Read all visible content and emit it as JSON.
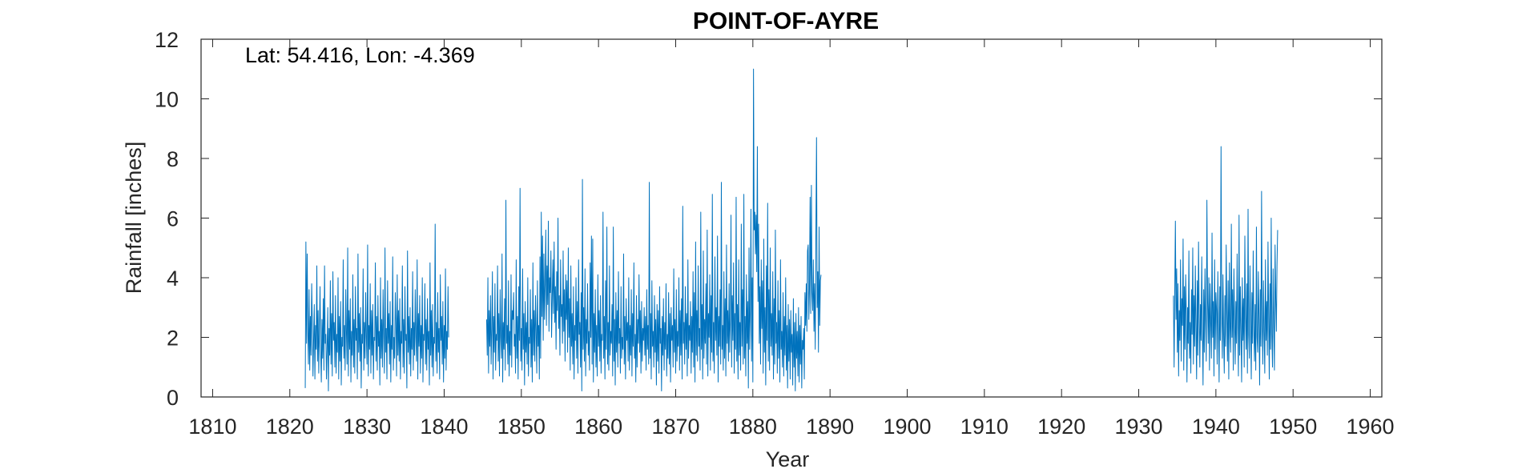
{
  "chart_data": {
    "type": "line",
    "title": "POINT-OF-AYRE",
    "xlabel": "Year",
    "ylabel": "Rainfall [inches]",
    "annotation": "Lat: 54.416, Lon: -4.369",
    "xlim": [
      1808.5,
      1961.5
    ],
    "ylim": [
      0,
      12
    ],
    "xticks": [
      1810,
      1820,
      1830,
      1840,
      1850,
      1860,
      1870,
      1880,
      1890,
      1900,
      1910,
      1920,
      1930,
      1940,
      1950,
      1960
    ],
    "yticks": [
      0,
      2,
      4,
      6,
      8,
      10,
      12
    ],
    "grid": false,
    "series_color": "#0072BD",
    "series": [
      {
        "frequency": "monthly",
        "segments": [
          {
            "start": 1822.0,
            "values": [
              0.3,
              5.2,
              1.8,
              4.8,
              2.2,
              1.1,
              3.6,
              0.9,
              2.7,
              1.4,
              3.8,
              2.5,
              0.7,
              1.9,
              3.1,
              0.6,
              2.4,
              1.6,
              4.4,
              1.2,
              2.9,
              0.8,
              2.2,
              3.7,
              1.5,
              0.5,
              2.6,
              1.3,
              3.3,
              0.9,
              4.4,
              1.8,
              2.1,
              0.6,
              1.6,
              3.0,
              0.2,
              2.3,
              1.4,
              3.9,
              1.1,
              2.8,
              0.7,
              4.2,
              1.9,
              2.5,
              1.0,
              3.4,
              0.8,
              2.1,
              1.5,
              4.0,
              0.6,
              2.7,
              1.2,
              3.2,
              0.4,
              2.0,
              1.7,
              4.6,
              1.3,
              2.4,
              0.9,
              3.6,
              2.2,
              1.1,
              5.0,
              0.7,
              2.9,
              1.6,
              3.3,
              0.5,
              2.2,
              1.4,
              4.1,
              1.0,
              2.6,
              0.8,
              3.7,
              1.9,
              2.3,
              0.6,
              4.8,
              1.5,
              2.8,
              1.2,
              3.0,
              0.3,
              2.1,
              1.8,
              4.3,
              0.9,
              2.5,
              1.3,
              3.5,
              2.0,
              1.1,
              5.1,
              0.7,
              2.4,
              1.6,
              3.8,
              0.8,
              2.9,
              1.4,
              3.1,
              0.6,
              2.0,
              1.9,
              4.5,
              1.2,
              2.7,
              0.9,
              3.4,
              1.7,
              2.2,
              0.4,
              4.0,
              1.3,
              2.6,
              1.0,
              3.6,
              2.1,
              0.8,
              5.0,
              1.5,
              2.3,
              0.6,
              3.9,
              1.8,
              2.8,
              1.1,
              3.2,
              0.5,
              2.4,
              1.6,
              4.7,
              0.9,
              2.0,
              1.3,
              3.5,
              2.5,
              0.7,
              4.1,
              1.4,
              2.9,
              1.2,
              3.3,
              0.6,
              2.2,
              1.8,
              4.4,
              1.0,
              2.6,
              0.8,
              3.7,
              1.9,
              2.1,
              0.3,
              4.9,
              1.5,
              2.7,
              1.1,
              3.0,
              0.7,
              2.3,
              1.6,
              4.2,
              0.9,
              2.5,
              1.4,
              3.6,
              2.0,
              1.2,
              4.6,
              0.6,
              2.8,
              1.7,
              3.4,
              0.8,
              2.4,
              1.3,
              4.0,
              0.5,
              2.1,
              1.9,
              3.8,
              1.1,
              2.6,
              0.9,
              3.3,
              1.6,
              2.2,
              0.4,
              4.5,
              1.4,
              2.9,
              1.0,
              3.1,
              0.7,
              2.0,
              1.8,
              5.8,
              1.2,
              2.5,
              0.8,
              3.5,
              1.5,
              2.3,
              0.6,
              4.1,
              1.9,
              2.7,
              1.1,
              3.2,
              0.5,
              2.4,
              1.3,
              4.3,
              0.9,
              2.2,
              1.6,
              3.7,
              2.0
            ]
          },
          {
            "start": 1845.5,
            "values": [
              2.6,
              1.4,
              4.0,
              0.8,
              2.9,
              1.7,
              3.4,
              1.1,
              2.3,
              4.2,
              0.6,
              2.7,
              1.5,
              3.8,
              0.9,
              2.1,
              1.9,
              4.4,
              1.2,
              2.8,
              0.7,
              3.6,
              2.0,
              1.3,
              4.8,
              0.5,
              2.5,
              1.6,
              3.3,
              0.9,
              6.6,
              1.8,
              2.4,
              1.1,
              3.9,
              0.7,
              2.2,
              1.4,
              4.1,
              1.0,
              2.9,
              2.6,
              3.5,
              1.7,
              2.1,
              0.8,
              4.6,
              1.3,
              2.7,
              0.6,
              3.7,
              1.9,
              7.0,
              1.2,
              2.3,
              0.9,
              4.3,
              1.6,
              2.8,
              0.4,
              3.2,
              1.5,
              2.5,
              1.1,
              4.0,
              0.7,
              2.0,
              1.8,
              3.6,
              1.0,
              2.6,
              0.5,
              4.5,
              1.4,
              2.9,
              1.2,
              3.4,
              2.2,
              0.8,
              3.9,
              1.7,
              2.4,
              0.6,
              4.7,
              1.3,
              6.2,
              2.7,
              5.4,
              1.9,
              4.8,
              2.6,
              3.8,
              5.6,
              2.4,
              4.4,
              3.1,
              5.9,
              2.2,
              4.0,
              3.5,
              4.9,
              2.0,
              3.3,
              4.6,
              2.8,
              5.2,
              2.5,
              3.7,
              1.6,
              4.2,
              2.9,
              6.0,
              2.3,
              3.4,
              1.4,
              4.6,
              2.7,
              3.1,
              1.8,
              4.9,
              2.2,
              3.6,
              1.2,
              4.1,
              2.6,
              3.9,
              1.5,
              5.0,
              2.0,
              3.3,
              0.9,
              4.4,
              1.7,
              2.8,
              1.1,
              3.7,
              0.6,
              2.4,
              1.9,
              4.0,
              1.3,
              3.2,
              0.8,
              4.6,
              2.1,
              2.5,
              1.0,
              3.5,
              0.2,
              7.3,
              1.6,
              3.0,
              1.2,
              4.3,
              0.7,
              2.6,
              1.8,
              3.8,
              1.4,
              2.2,
              0.9,
              4.5,
              2.0,
              5.4,
              1.1,
              5.3,
              0.5,
              2.8,
              1.5,
              3.6,
              1.0,
              2.4,
              0.7,
              4.1,
              1.7,
              2.9,
              1.2,
              3.4,
              0.8,
              2.1,
              1.9,
              6.2,
              1.3,
              2.7,
              0.6,
              3.9,
              1.6,
              5.7,
              1.1,
              2.5,
              0.9,
              4.4,
              1.4,
              2.2,
              1.8,
              3.1,
              0.7,
              5.7,
              1.2,
              2.6,
              0.4,
              3.5,
              1.5,
              2.9,
              1.0,
              4.2,
              1.8,
              2.3,
              0.8,
              3.7,
              1.3,
              2.0,
              1.6,
              4.8,
              1.1,
              2.7,
              0.6,
              3.3,
              1.9,
              2.5,
              1.2,
              4.0,
              0.9,
              2.4,
              1.4,
              3.6,
              0.7,
              2.8,
              1.7,
              4.5,
              1.3,
              2.1,
              0.5,
              3.4,
              1.0,
              2.6,
              1.8,
              4.1,
              1.5,
              2.9,
              0.8,
              3.2,
              1.2,
              2.3,
              1.9,
              3.0,
              1.4,
              2.7,
              0.9,
              3.6,
              1.6,
              2.4,
              1.1,
              7.2,
              1.3,
              2.8,
              0.6,
              3.9,
              1.7,
              2.2,
              1.0,
              3.4,
              1.5,
              2.6,
              0.4,
              3.1,
              1.2,
              2.9,
              0.8,
              3.7,
              1.8,
              2.3,
              0.2,
              2.7,
              1.4,
              3.3,
              0.9,
              2.5,
              1.6,
              3.8,
              0.7,
              2.1,
              1.3,
              3.5,
              1.1,
              2.8,
              0.5,
              3.0,
              1.9,
              2.4,
              1.0,
              4.3,
              1.5,
              2.6,
              0.8,
              3.6,
              1.2,
              2.2,
              1.7,
              4.0,
              0.9,
              2.9,
              1.4,
              3.3,
              0.6,
              6.4,
              1.8,
              2.5,
              1.1,
              3.7,
              1.6,
              2.8,
              0.7,
              4.6,
              1.3,
              2.4,
              1.9,
              3.2,
              0.8,
              2.7,
              1.5,
              4.2,
              1.0,
              3.5,
              0.5,
              5.2,
              1.4,
              2.9,
              1.2,
              4.4,
              1.7,
              2.3,
              0.9,
              6.2,
              1.6,
              3.1,
              0.6,
              4.9,
              1.3,
              2.6,
              1.8,
              3.8,
              1.1,
              5.6,
              0.7,
              2.8,
              2.0,
              4.1,
              0.9,
              3.4,
              1.5,
              6.8,
              1.2,
              2.5,
              0.8,
              4.7,
              1.9,
              3.0,
              1.4,
              5.4,
              0.5,
              2.7,
              1.7,
              3.6,
              1.1,
              7.2,
              1.6,
              2.4,
              0.9,
              4.2,
              1.3,
              3.3,
              0.7,
              5.1,
              1.8,
              2.9,
              1.2,
              3.8,
              1.5,
              2.6,
              6.1,
              1.0,
              3.4,
              1.9,
              4.5,
              0.8,
              2.8,
              1.6,
              6.7,
              1.2,
              3.1,
              0.6,
              4.6,
              1.4,
              2.5,
              0.9,
              5.8,
              1.7,
              3.6,
              1.1,
              6.8,
              1.3,
              2.7,
              0.7,
              4.1,
              1.8,
              3.2,
              0.3,
              5.0,
              1.6,
              2.9,
              6.3,
              1.2,
              4.0,
              0.5,
              11.0,
              5.6,
              6.2,
              4.8,
              6.1,
              4.2,
              8.4,
              3.2,
              5.8,
              1.8,
              3.7,
              1.1,
              4.6,
              2.3,
              3.9,
              0.8,
              5.3,
              1.5,
              3.0,
              0.4,
              4.4,
              1.9,
              6.5,
              1.2,
              3.6,
              0.9,
              5.0,
              1.7,
              2.8,
              1.4,
              4.2,
              0.6,
              3.3,
              1.1,
              5.6,
              1.8,
              2.5,
              0.8,
              3.9,
              1.3,
              2.9,
              0.5,
              4.6,
              1.6,
              2.2,
              1.0,
              3.5,
              0.7,
              2.7,
              1.4,
              4.0,
              0.9,
              2.4,
              0.3,
              3.1,
              1.2,
              2.6,
              0.6,
              2.9,
              1.5,
              2.1,
              0.4,
              3.3,
              1.0,
              2.5,
              0.2,
              2.8,
              1.3,
              2.2,
              0.7,
              3.0,
              0.5,
              2.4,
              1.1,
              2.7,
              0.3,
              1.9,
              1.6,
              2.3,
              0.6,
              3.5,
              2.4,
              3.8,
              2.2,
              4.9,
              5.1,
              2.6,
              3.6,
              6.7,
              2.8,
              7.1,
              3.5,
              2.9,
              4.6,
              2.2,
              3.8,
              1.6,
              5.4,
              8.7,
              3.0,
              4.2,
              1.5,
              5.7,
              2.4,
              3.9,
              4.1
            ]
          },
          {
            "start": 1934.5,
            "values": [
              3.4,
              1.0,
              3.5,
              5.9,
              2.6,
              4.3,
              1.5,
              3.8,
              0.7,
              2.9,
              1.9,
              4.6,
              1.2,
              3.3,
              2.4,
              5.3,
              0.9,
              3.7,
              1.6,
              4.1,
              2.8,
              0.5,
              3.0,
              1.8,
              4.9,
              1.3,
              2.5,
              0.8,
              3.6,
              2.1,
              5.0,
              1.1,
              3.4,
              1.7,
              4.4,
              2.3,
              0.6,
              3.9,
              1.4,
              5.2,
              2.7,
              1.0,
              3.1,
              1.9,
              4.7,
              2.2,
              0.4,
              3.6,
              1.5,
              4.3,
              2.6,
              1.2,
              6.6,
              3.3,
              1.8,
              4.0,
              0.9,
              3.8,
              2.5,
              1.3,
              5.5,
              2.0,
              3.2,
              0.7,
              4.6,
              1.6,
              3.5,
              2.9,
              1.1,
              4.2,
              2.4,
              0.5,
              3.7,
              1.9,
              8.4,
              2.7,
              1.3,
              4.1,
              2.1,
              0.8,
              3.4,
              1.7,
              5.1,
              2.8,
              1.2,
              3.9,
              0.6,
              4.5,
              2.3,
              1.5,
              5.8,
              2.0,
              3.6,
              0.9,
              4.3,
              2.6,
              1.1,
              3.2,
              1.8,
              4.8,
              2.4,
              0.7,
              6.1,
              1.4,
              3.7,
              2.2,
              0.5,
              4.0,
              1.9,
              3.3,
              1.0,
              5.4,
              2.7,
              1.6,
              3.8,
              0.8,
              6.3,
              2.1,
              1.3,
              4.4,
              2.5,
              0.6,
              3.5,
              1.8,
              4.9,
              2.3,
              1.2,
              3.1,
              0.9,
              5.7,
              2.0,
              1.5,
              4.2,
              2.6,
              0.4,
              3.6,
              1.7,
              6.9,
              2.4,
              1.1,
              3.9,
              2.2,
              0.8,
              4.6,
              1.9,
              3.2,
              1.4,
              5.2,
              2.7,
              0.6,
              3.8,
              1.6,
              6.0,
              2.1,
              1.0,
              4.3,
              2.5,
              0.9,
              5.1,
              3.3,
              2.2,
              4.4,
              5.6
            ]
          }
        ]
      }
    ]
  }
}
